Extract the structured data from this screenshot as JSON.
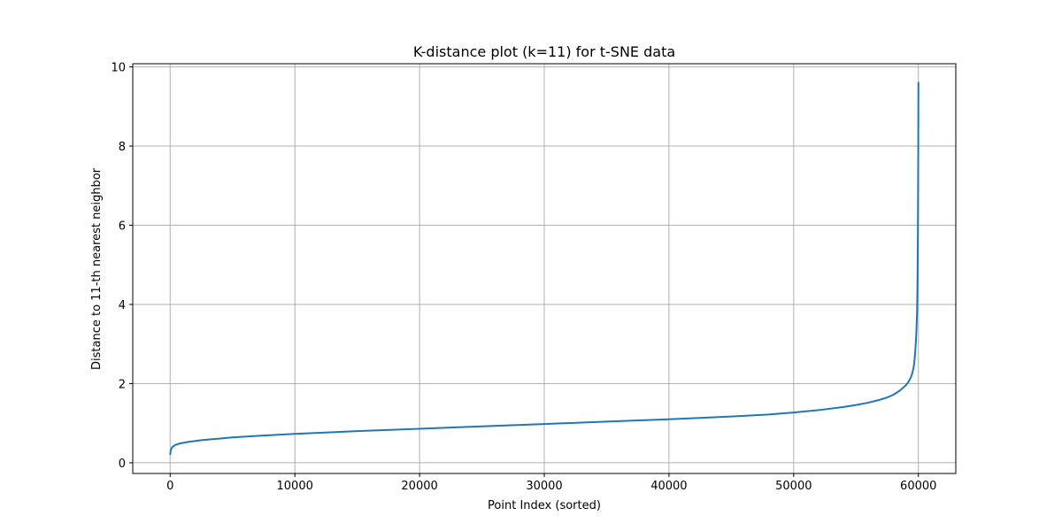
{
  "chart_data": {
    "type": "line",
    "title": "K-distance plot (k=11) for t-SNE data",
    "xlabel": "Point Index (sorted)",
    "ylabel": "Distance to 11-th nearest neighbor",
    "xlim": [
      -3000,
      63000
    ],
    "ylim": [
      -0.27,
      10.08
    ],
    "xticks": [
      0,
      10000,
      20000,
      30000,
      40000,
      50000,
      60000
    ],
    "yticks": [
      0,
      2,
      4,
      6,
      8,
      10
    ],
    "grid": true,
    "line_color": "#1f77b4",
    "series": [
      {
        "x": [
          0,
          50,
          150,
          400,
          800,
          1500,
          2500,
          3500,
          5000,
          7000,
          10000,
          15000,
          20000,
          25000,
          30000,
          35000,
          40000,
          45000,
          48000,
          50000,
          52000,
          54000,
          55000,
          56000,
          57000,
          57500,
          58000,
          58500,
          59000,
          59200,
          59400,
          59500,
          59600,
          59650,
          59700,
          59750,
          59800,
          59850,
          59900,
          59930,
          59960,
          59980,
          59995,
          60000
        ],
        "y": [
          0.2,
          0.32,
          0.39,
          0.45,
          0.49,
          0.53,
          0.57,
          0.6,
          0.64,
          0.68,
          0.73,
          0.8,
          0.86,
          0.92,
          0.98,
          1.04,
          1.1,
          1.17,
          1.22,
          1.27,
          1.33,
          1.41,
          1.46,
          1.52,
          1.6,
          1.65,
          1.72,
          1.82,
          1.96,
          2.04,
          2.16,
          2.25,
          2.38,
          2.48,
          2.62,
          2.82,
          3.05,
          3.4,
          3.9,
          4.6,
          5.8,
          7.2,
          8.7,
          9.62
        ]
      }
    ]
  }
}
